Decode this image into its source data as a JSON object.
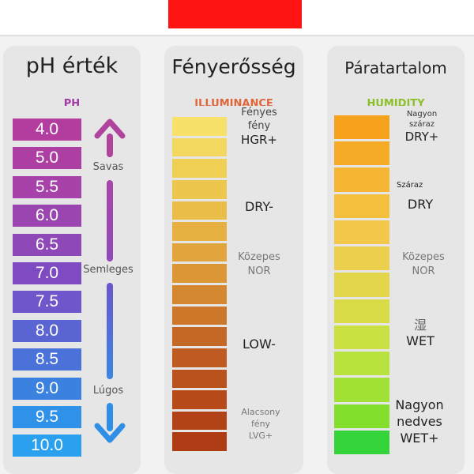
{
  "ph": {
    "title": "pH érték",
    "ghost_title": "PH",
    "values": [
      "4.0",
      "5.0",
      "5.5",
      "6.0",
      "6.5",
      "7.0",
      "7.5",
      "8.0",
      "8.5",
      "9.0",
      "9.5",
      "10.0"
    ],
    "colors": [
      "#b23d9e",
      "#ad3fa2",
      "#a642a9",
      "#9b45b1",
      "#8e48b8",
      "#7f4bc2",
      "#6f56cb",
      "#5a64d2",
      "#4a72d9",
      "#3b82e0",
      "#2f92e8",
      "#2aa0ef"
    ],
    "labels": {
      "acidic": "Savas",
      "neutral": "Semleges",
      "alkaline": "Lúgos"
    },
    "arrow_colors": {
      "top": "#b0449d",
      "bottom": "#2f8fe6"
    }
  },
  "light": {
    "title": "Fényerősség",
    "ghost_title": "ILLUMINANCE",
    "colors": [
      "#f7e16b",
      "#f3d85f",
      "#f0cf55",
      "#edc64e",
      "#eabc48",
      "#e6b142",
      "#e2a43c",
      "#dc9636",
      "#d58730",
      "#cd772a",
      "#c56825",
      "#bf5b20",
      "#b9521c",
      "#b64a19",
      "#b24317",
      "#ae3d15"
    ],
    "labels": {
      "bright": [
        "Fényes",
        "fény",
        "HGR+"
      ],
      "dry": "DRY-",
      "medium": [
        "Közepes",
        "NOR"
      ],
      "low": "LOW-",
      "dim": [
        "Alacsony",
        "fény",
        "LVG+"
      ]
    }
  },
  "humidity": {
    "title": "Páratartalom",
    "ghost_title": "HUMIDITY",
    "colors": [
      "#f7a21d",
      "#f6ab26",
      "#f6b532",
      "#f5bf3e",
      "#f3c84a",
      "#eccf4c",
      "#e4d64a",
      "#d9dc46",
      "#cbe042",
      "#b8e23d",
      "#a1e136",
      "#84df2d",
      "#35d43a"
    ],
    "labels": {
      "very_dry": [
        "Nagyon",
        "száraz",
        "DRY+"
      ],
      "dry": [
        "Száraz",
        "DRY"
      ],
      "medium": [
        "Közepes",
        "NOR"
      ],
      "wet": [
        "湿",
        "WET"
      ],
      "very_wet": [
        "Nagyon",
        "nedves",
        "WET+"
      ]
    }
  }
}
